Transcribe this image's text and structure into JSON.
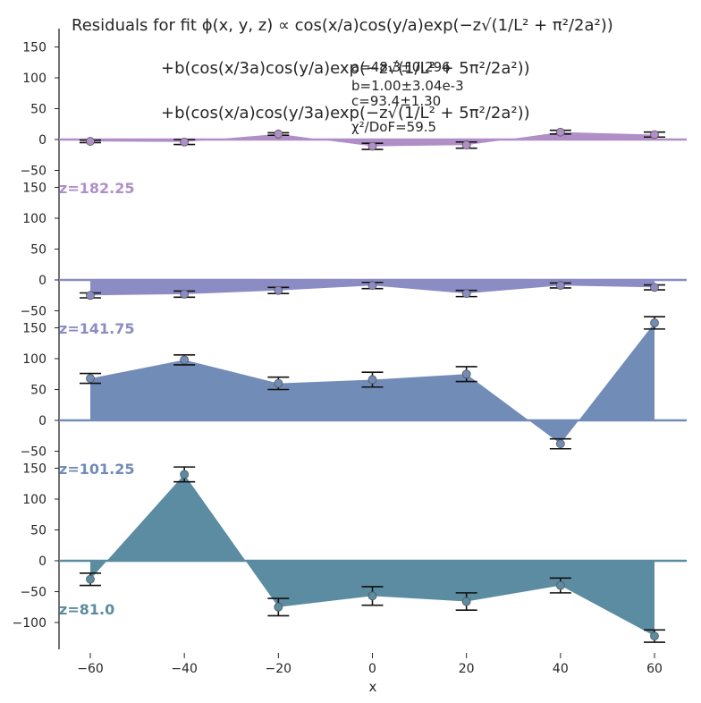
{
  "title": {
    "line1": "Residuals for fit ϕ(x, y, z) ∝ cos(x/a)cos(y/a)exp(−z√(1/L² + π²/2a²))",
    "line2": "+b(cos(x/3a)cos(y/a)exp(−z√(1/L² + 5π²/2a²))",
    "line3": "+b(cos(x/a)cos(y/3a)exp(−z√(1/L² + 5π²/2a²))"
  },
  "fit_params": {
    "a": "a=48.3±0.296",
    "b": "b=1.00±3.04e-3",
    "c": "c=93.4±1.30",
    "chi": "χ²/DoF=59.5"
  },
  "chart_data": {
    "type": "area",
    "xlabel": "x",
    "x_ticks": [
      -60,
      -40,
      -20,
      0,
      20,
      40,
      60
    ],
    "xlim": [
      -67,
      67
    ],
    "y_ticks": [
      -100,
      -50,
      0,
      50,
      100,
      150
    ],
    "panels": [
      {
        "label": "z=182.25",
        "color": "#b08fc7",
        "ylim": [
          -60,
          180
        ],
        "x": [
          -60,
          -40,
          -20,
          0,
          20,
          40,
          60
        ],
        "values": [
          -3,
          -4,
          9,
          -11,
          -9,
          12,
          8
        ],
        "err_low": [
          -3,
          -4,
          9,
          -11,
          -9,
          12,
          8
        ],
        "err_high": [
          -3,
          -4,
          9,
          -11,
          -9,
          12,
          8
        ],
        "err_width": [
          2,
          4,
          2,
          5,
          5,
          3,
          4
        ]
      },
      {
        "label": "z=141.75",
        "color": "#8c8cc4",
        "ylim": [
          -60,
          180
        ],
        "x": [
          -60,
          -40,
          -20,
          0,
          20,
          40,
          60
        ],
        "values": [
          -25,
          -23,
          -17,
          -9,
          -22,
          -9,
          -12
        ],
        "err_width": [
          4,
          5,
          5,
          5,
          5,
          4,
          4
        ]
      },
      {
        "label": "z=101.25",
        "color": "#728cb8",
        "ylim": [
          -60,
          180
        ],
        "x": [
          -60,
          -40,
          -20,
          0,
          20,
          40,
          60
        ],
        "values": [
          68,
          98,
          60,
          66,
          75,
          -38,
          158
        ],
        "err_width": [
          8,
          8,
          10,
          12,
          12,
          8,
          10
        ]
      },
      {
        "label": "z=81.0",
        "color": "#5b8ca1",
        "ylim": [
          -140,
          180
        ],
        "x": [
          -60,
          -40,
          -20,
          0,
          20,
          40,
          60
        ],
        "values": [
          -30,
          140,
          -75,
          -57,
          -66,
          -40,
          -122
        ],
        "err_width": [
          10,
          12,
          14,
          15,
          14,
          12,
          10
        ]
      }
    ]
  }
}
